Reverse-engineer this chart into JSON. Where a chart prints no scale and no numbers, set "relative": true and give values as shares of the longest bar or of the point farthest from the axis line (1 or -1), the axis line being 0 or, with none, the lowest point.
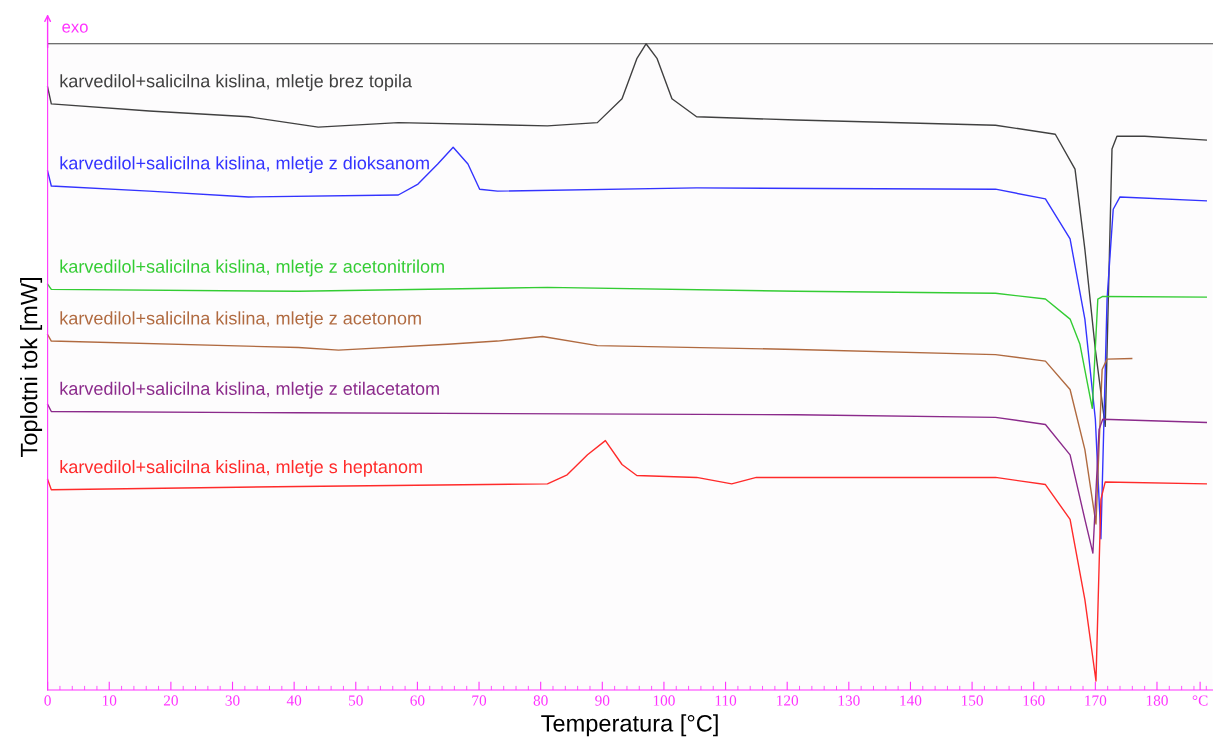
{
  "chart_data": {
    "type": "line",
    "relative": true,
    "xlabel": "Temperatura [°C]",
    "ylabel": "Toplotni tok [mW]",
    "annotations": [
      "exo"
    ],
    "xlim": [
      0,
      189
    ],
    "xticks": [
      0,
      10,
      20,
      30,
      40,
      50,
      60,
      70,
      80,
      90,
      100,
      110,
      120,
      130,
      140,
      150,
      160,
      170,
      180,
      {
        "value": 187,
        "label": "°C"
      }
    ],
    "grid": false,
    "legend": false,
    "marker": "none",
    "line_style": "solid",
    "series": [
      {
        "name": "karvedilol+salicilna kislina, mletje brez topila",
        "color": "#404040",
        "x": [
          0,
          0.6,
          16.5,
          32.6,
          43.9,
          56.9,
          81.1,
          89.2,
          93.2,
          95.6,
          97.1,
          98.9,
          101.3,
          105.3,
          121.5,
          153.8,
          163.5,
          166.7,
          168.3,
          170.0,
          171.6,
          172.7,
          173.5,
          178.0,
          188
        ],
        "values": [
          0.933,
          0.907,
          0.896,
          0.887,
          0.871,
          0.878,
          0.873,
          0.878,
          0.915,
          0.977,
          1.0,
          0.977,
          0.915,
          0.887,
          0.882,
          0.874,
          0.86,
          0.806,
          0.682,
          0.527,
          0.408,
          0.837,
          0.857,
          0.857,
          0.851
        ]
      },
      {
        "name": "karvedilol+salicilna kislina, mletje z dioksanom",
        "color": "#3333ff",
        "x": [
          0,
          0.6,
          16.5,
          32.6,
          56.9,
          60.1,
          63.3,
          65.8,
          68.2,
          70.1,
          73.0,
          105.3,
          153.8,
          161.9,
          165.9,
          168.3,
          170.0,
          170.9,
          171.9,
          172.9,
          174.0,
          188
        ],
        "values": [
          0.803,
          0.78,
          0.772,
          0.763,
          0.766,
          0.783,
          0.814,
          0.84,
          0.814,
          0.775,
          0.772,
          0.777,
          0.775,
          0.76,
          0.698,
          0.574,
          0.419,
          0.234,
          0.605,
          0.744,
          0.763,
          0.757
        ]
      },
      {
        "name": "karvedilol+salicilna kislina, mletje z acetonitrilom",
        "color": "#33cc33",
        "x": [
          0,
          0.6,
          40.7,
          81.1,
          121.5,
          153.8,
          161.9,
          165.9,
          167.5,
          169.5,
          170.4,
          171.2,
          188
        ],
        "values": [
          0.628,
          0.62,
          0.617,
          0.623,
          0.617,
          0.614,
          0.605,
          0.574,
          0.535,
          0.436,
          0.605,
          0.609,
          0.608
        ]
      },
      {
        "name": "karvedilol+salicilna kislina, mletje z acetonom",
        "color": "#b06a40",
        "x": [
          0,
          0.6,
          40.7,
          47.2,
          64.9,
          73.0,
          80.3,
          89.2,
          121.5,
          153.8,
          161.9,
          165.9,
          168.3,
          170.1,
          171.1,
          171.9,
          175.9
        ],
        "values": [
          0.55,
          0.54,
          0.53,
          0.526,
          0.535,
          0.54,
          0.547,
          0.533,
          0.527,
          0.519,
          0.509,
          0.465,
          0.372,
          0.257,
          0.496,
          0.512,
          0.513
        ]
      },
      {
        "name": "karvedilol+salicilna kislina, mletje z etilacetatom",
        "color": "#8b2a8b",
        "x": [
          0,
          0.6,
          40.7,
          121.5,
          153.8,
          161.9,
          165.9,
          168.3,
          169.6,
          170.6,
          171.2,
          188
        ],
        "values": [
          0.442,
          0.431,
          0.429,
          0.426,
          0.422,
          0.411,
          0.364,
          0.264,
          0.212,
          0.403,
          0.419,
          0.414
        ]
      },
      {
        "name": "karvedilol+salicilna kislina, mletje s heptanom",
        "color": "#ff2a2a",
        "x": [
          0,
          0.6,
          40.7,
          81.1,
          84.3,
          87.6,
          90.5,
          93.2,
          95.6,
          105.3,
          111.0,
          115.0,
          153.8,
          161.9,
          165.9,
          168.3,
          170.1,
          170.9,
          171.6,
          188
        ],
        "values": [
          0.326,
          0.31,
          0.315,
          0.319,
          0.333,
          0.364,
          0.386,
          0.349,
          0.332,
          0.329,
          0.319,
          0.329,
          0.329,
          0.318,
          0.264,
          0.14,
          0.014,
          0.295,
          0.322,
          0.319
        ]
      }
    ]
  }
}
